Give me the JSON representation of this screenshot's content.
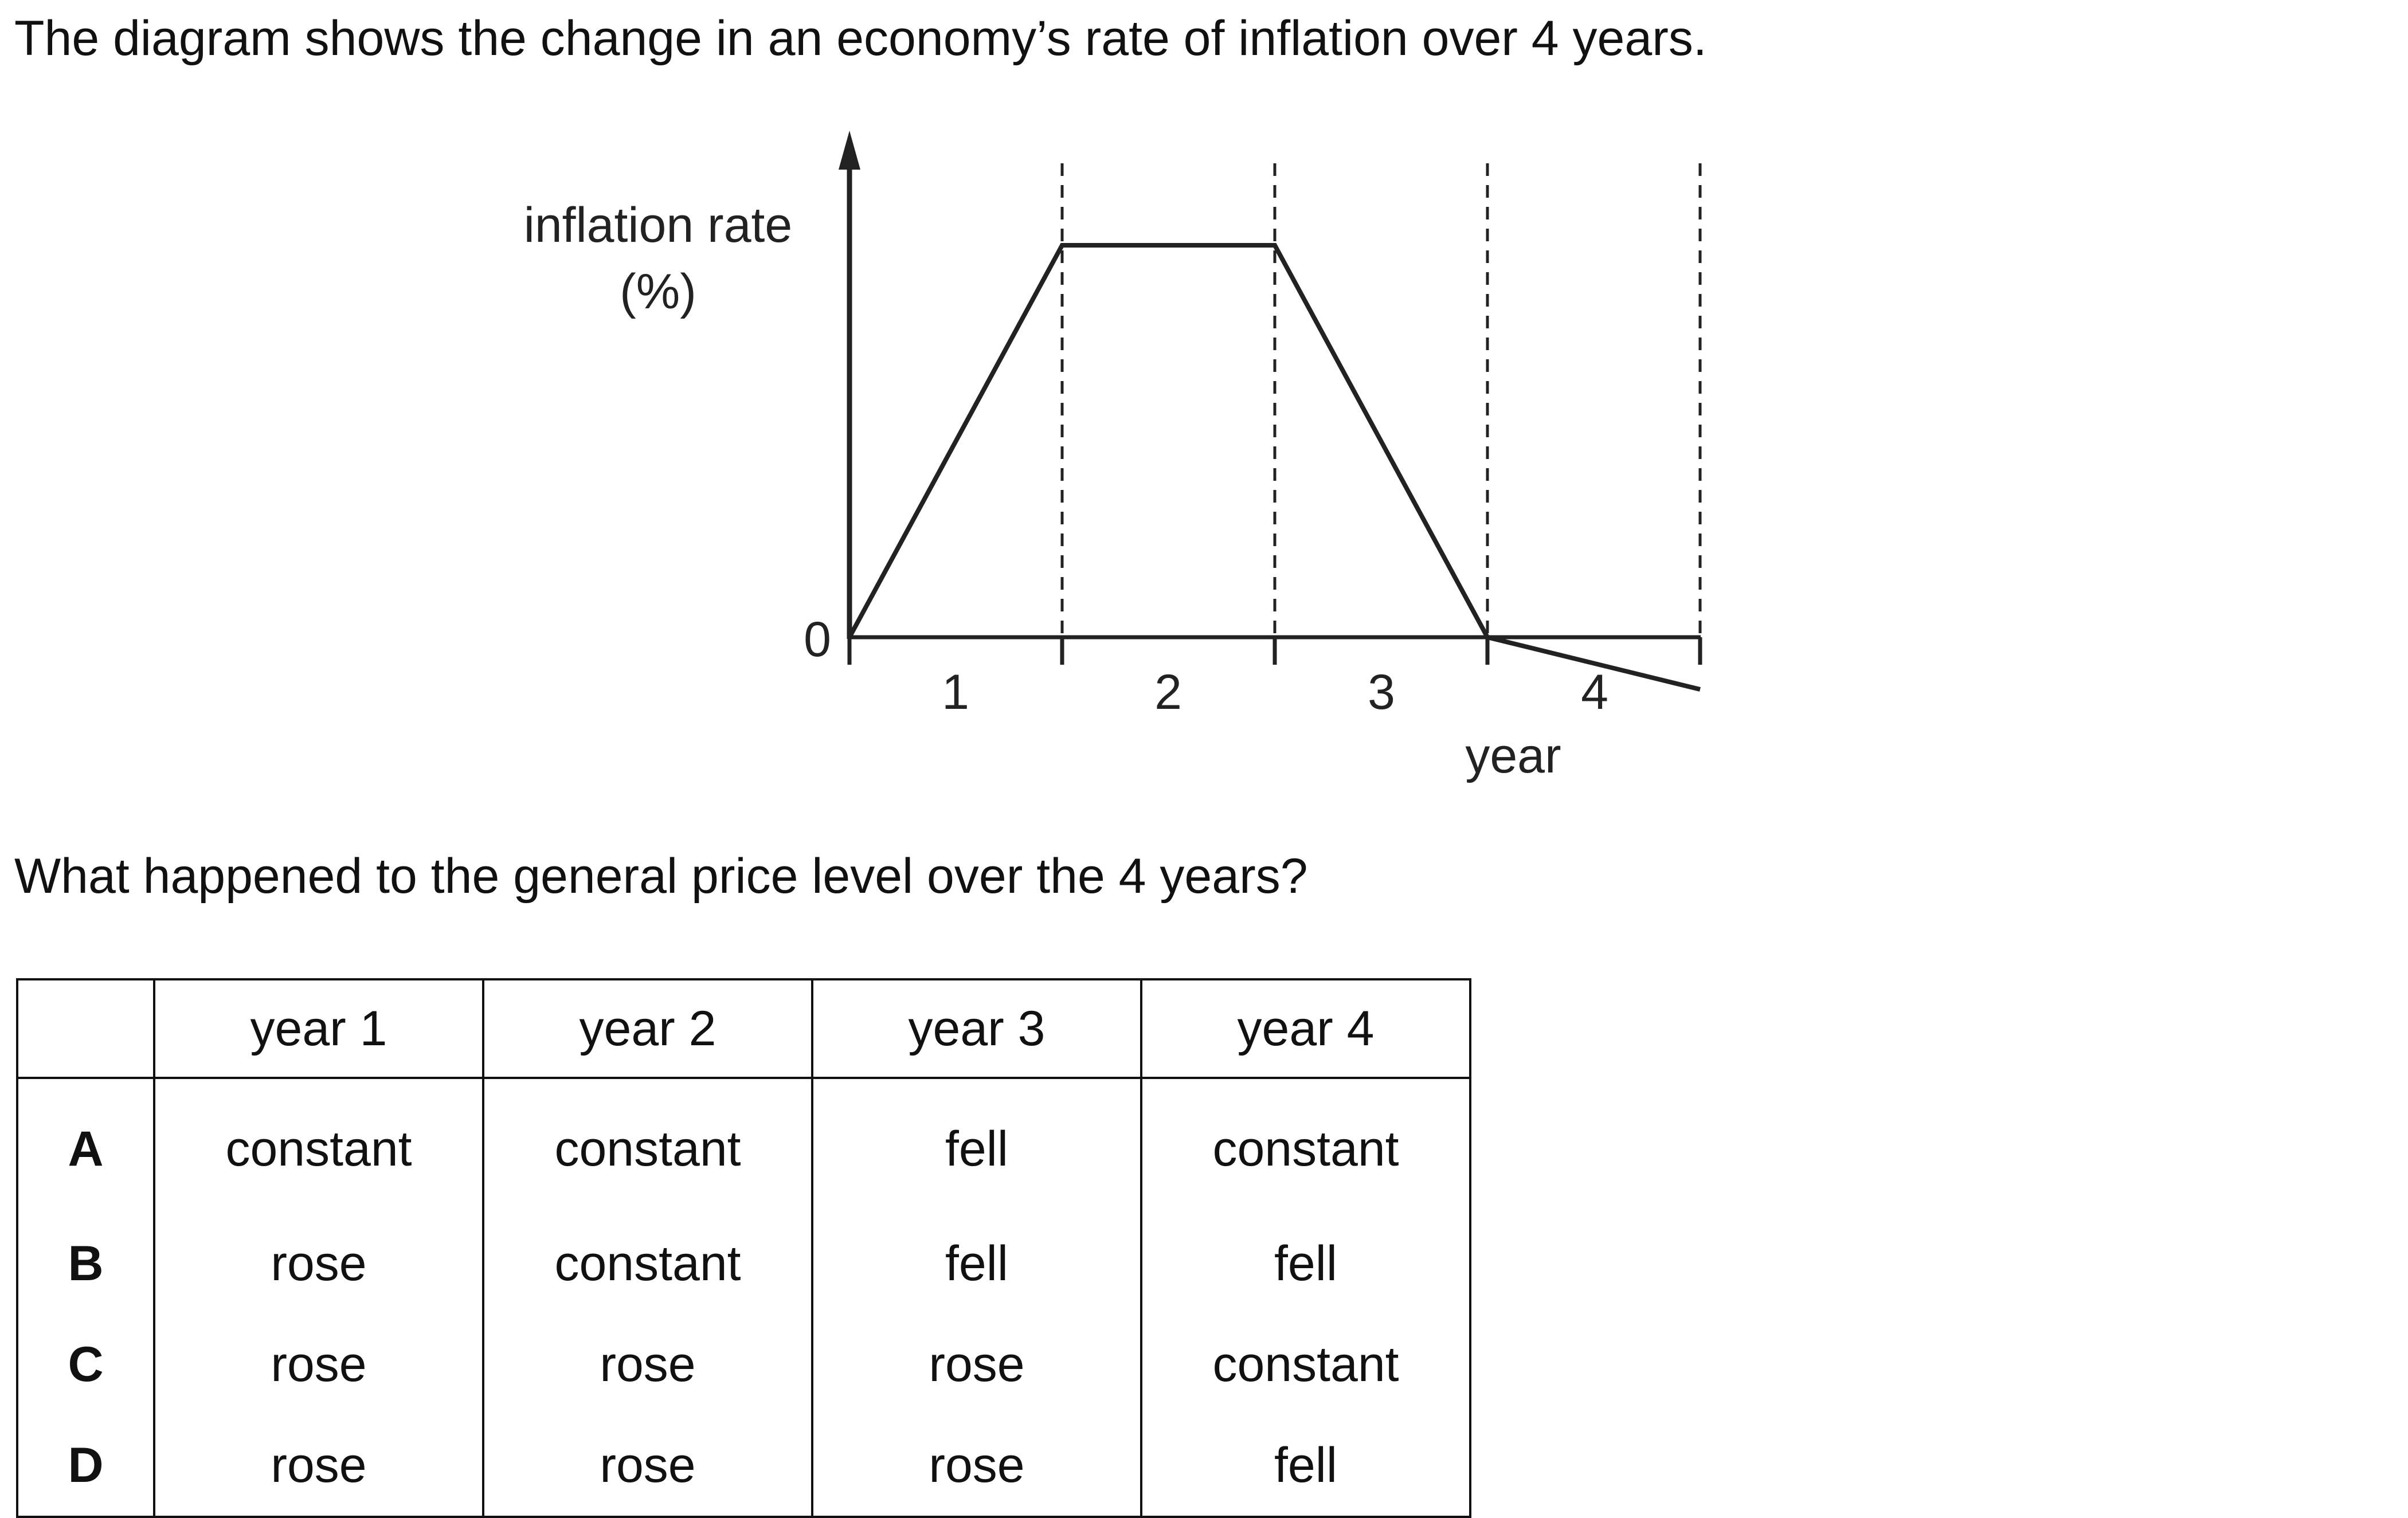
{
  "intro": "The diagram shows the change in an economy’s rate of inflation over 4 years.",
  "question": "What happened to the general price level over the 4 years?",
  "diagram": {
    "y_axis_label_line1": "inflation rate",
    "y_axis_label_line2": "(%)",
    "origin_label": "0",
    "x_ticks": [
      "1",
      "2",
      "3",
      "4"
    ],
    "x_axis_label": "year",
    "line_shape": "rises in year 1, level in year 2, falls to zero in year 3, falls below zero in year 4"
  },
  "table": {
    "headers": [
      "",
      "year 1",
      "year 2",
      "year 3",
      "year 4"
    ],
    "rows": [
      {
        "key": "A",
        "values": [
          "constant",
          "constant",
          "fell",
          "constant"
        ]
      },
      {
        "key": "B",
        "values": [
          "rose",
          "constant",
          "fell",
          "fell"
        ]
      },
      {
        "key": "C",
        "values": [
          "rose",
          "rose",
          "rose",
          "constant"
        ]
      },
      {
        "key": "D",
        "values": [
          "rose",
          "rose",
          "rose",
          "fell"
        ]
      }
    ]
  }
}
